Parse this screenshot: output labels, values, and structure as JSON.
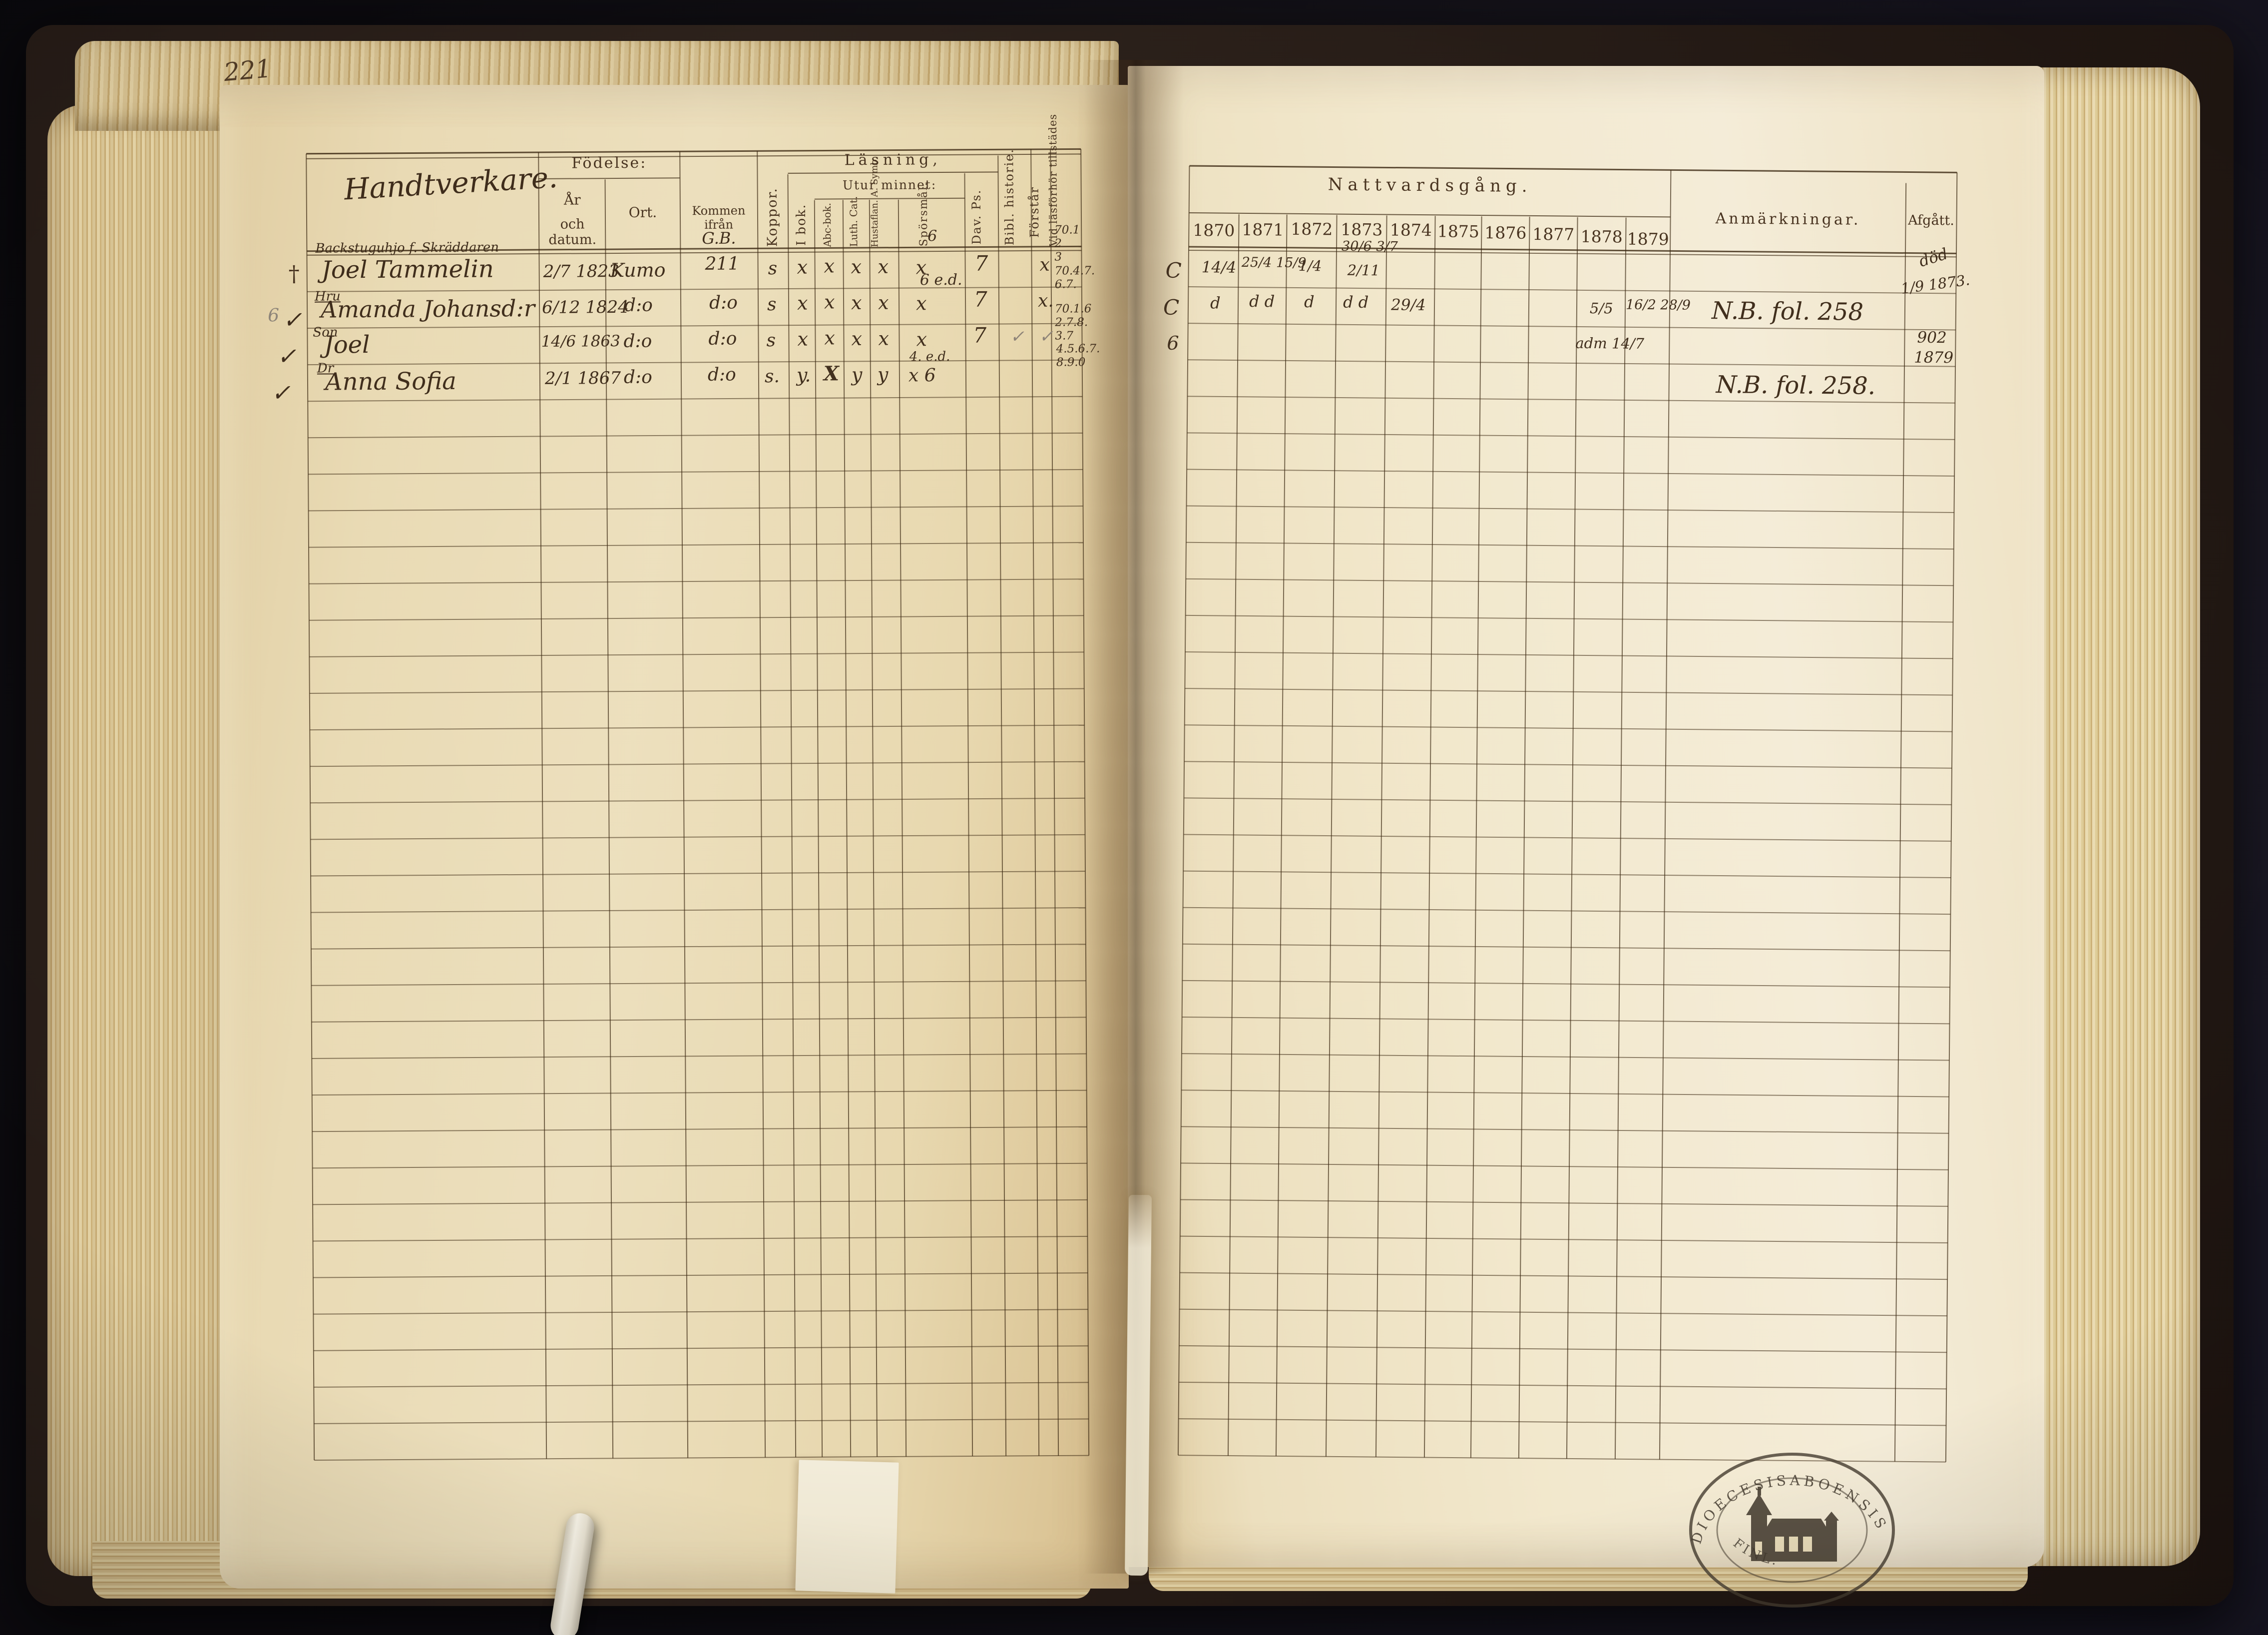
{
  "book": {
    "left_page_number": "221",
    "stamp": {
      "arc_top": "DIOECESISABOENSIS",
      "arc_bottom": "FINL.",
      "icon": "church-icon"
    }
  },
  "left_table": {
    "group_title": "Handtverkare.",
    "headers": {
      "fodelse": "Födelse:",
      "ar": "År",
      "och_datum": "och datum.",
      "ort": "Ort.",
      "kommen_ifran": "Kommen ifrån",
      "koppor": "Koppor.",
      "lasning": "Läsning,",
      "i_bok": "I bok.",
      "utur_minnet": "Utur minnet:",
      "abc_bok": "Abc-bok.",
      "luth_cat": "Luth. Cat.",
      "hustaflan": "Hustaflan. A. Symb.",
      "sporsmal": "Spörsmål.",
      "dav_ps": "Dav. Ps.",
      "bibl_historie": "Bibl. historie.",
      "forstar": "Förstår",
      "vid_lasforhor": "Vid läsförhör tillstädes"
    },
    "rows": [
      {
        "margin": "†",
        "occupation": "Backstuguhjo f. Skräddaren",
        "name": "Joel Tammelin",
        "birth_date": "2/7 1823",
        "birth_place": "Kumo",
        "kommen": "G.B.",
        "kommen2": "211",
        "koppor": "s",
        "i_bok": "x",
        "abc": "x",
        "luth": "x",
        "hust": "x",
        "sporsmal": "x",
        "sporsmal_note": "6",
        "dav": "7",
        "forstar": "x",
        "vid1": "70.1",
        "vid2": "2",
        "vid3": "3"
      },
      {
        "margin": "✓",
        "margin_pencil": "6",
        "relation": "Hru",
        "name": "Amanda Johansd:r",
        "birth_date": "6/12 1824",
        "birth_place": "d:o",
        "kommen": "d:o",
        "koppor": "s",
        "i_bok": "x",
        "abc": "x",
        "luth": "x",
        "hust": "x",
        "sporsmal": "x",
        "sporsmal_note": "6 e.d.",
        "dav": "7",
        "forstar": "x.",
        "vid1": "70.4.7.",
        "vid2": "6.7."
      },
      {
        "margin": "✓",
        "relation": "Son",
        "name": "Joel",
        "birth_date": "14/6 1863",
        "birth_place": "d:o",
        "kommen": "d:o",
        "koppor": "s",
        "i_bok": "x",
        "abc": "x",
        "luth": "x",
        "hust": "x",
        "sporsmal": "x",
        "sporsmal_note": "4. e.d.",
        "dav": "7",
        "bibl": "✓",
        "forstar": "✓",
        "vid1": "70.1.6",
        "vid2": "2.7.8.",
        "vid3": "3.7"
      },
      {
        "margin": "✓",
        "relation": "Dr",
        "name": "Anna Sofia",
        "birth_date": "2/1 1867",
        "birth_place": "d:o",
        "kommen": "d:o",
        "koppor": "s.",
        "i_bok": "y.",
        "abc": "X",
        "luth": "y",
        "hust": "y",
        "sporsmal": "x 6",
        "vid1": "4.5.6.7.",
        "vid2": "8.9.0"
      }
    ]
  },
  "right_table": {
    "title": "Nattvardsgång.",
    "anmarkningar_label": "Anmärkningar.",
    "afgatt_label": "Afgått.",
    "years": [
      "1870",
      "1871",
      "1872",
      "1873",
      "1874",
      "1875",
      "1876",
      "1877",
      "1878",
      "1879"
    ],
    "rows": [
      {
        "margin": "C",
        "c1870": "14/4",
        "c1871": "25/4 15/9",
        "c1872": "1/4",
        "c1873a": "30/6 3/7",
        "c1873b": "2/11",
        "afgatt1": "död",
        "afgatt2": "1/9 1873."
      },
      {
        "margin": "C",
        "c1870": "d",
        "c1871": "d d",
        "c1872": "d",
        "c1873": "d d",
        "c1874": "29/4",
        "c1878": "5/5",
        "c1879": "16/2 28/9",
        "anm": "N.B. fol. 258"
      },
      {
        "margin": "6",
        "c1878": "adm 14/7",
        "afgatt1": "902",
        "afgatt2": "1879"
      },
      {
        "anm": "N.B. fol. 258."
      }
    ]
  }
}
